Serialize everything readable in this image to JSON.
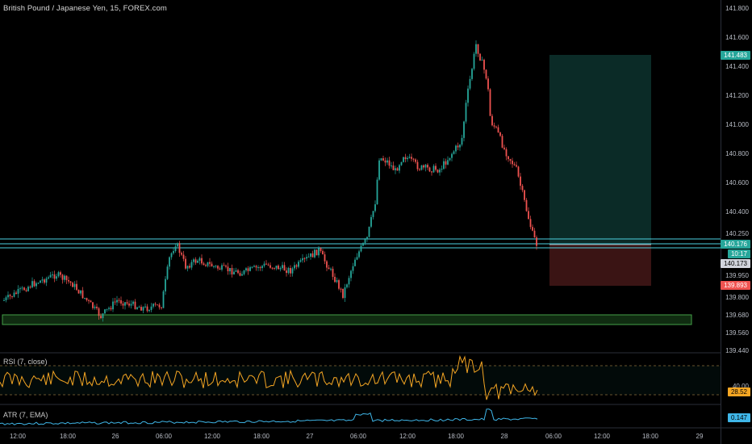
{
  "chart": {
    "title": "British Pound / Japanese Yen, 15, FOREX.com",
    "price_axis": [
      "141.800",
      "141.600",
      "141.400",
      "141.200",
      "141.000",
      "140.800",
      "140.600",
      "140.400",
      "140.250",
      "140.176",
      "140.173",
      "139.950",
      "139.893",
      "139.800",
      "139.680",
      "139.560",
      "139.440"
    ],
    "badges": {
      "target": {
        "text": "141.483",
        "color": "#26a69a"
      },
      "entry": {
        "text": "140.176",
        "color": "#26a69a"
      },
      "countdown": {
        "text": "10:17",
        "color": "#26a69a"
      },
      "last": {
        "text": "140.173",
        "color": "#d1d4dc"
      },
      "stop": {
        "text": "139.893",
        "color": "#ef5350"
      }
    },
    "time_axis": [
      "12:00",
      "18:00",
      "26",
      "06:00",
      "12:00",
      "18:00",
      "27",
      "06:00",
      "12:00",
      "18:00",
      "28",
      "06:00",
      "12:00",
      "18:00",
      "29"
    ],
    "colors": {
      "up": "#26a69a",
      "down": "#ef5350",
      "hline": "#4dd0e1",
      "zone": "#2e7d32",
      "profit": "#0d2b27",
      "loss": "#3a1414"
    }
  },
  "rsi": {
    "label": "RSI (7, close)",
    "value": "28.52",
    "level": "40.00",
    "color": "#f5a623"
  },
  "atr": {
    "label": "ATR (7, EMA)",
    "value": "0.147",
    "color": "#3fb6e8"
  }
}
